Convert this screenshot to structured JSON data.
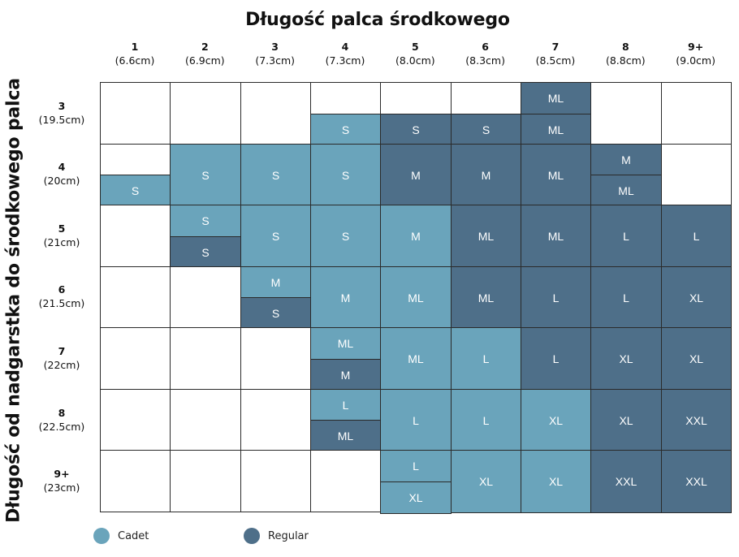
{
  "chart_data": {
    "type": "table",
    "title": "Długość palca środkowego",
    "ylabel": "Długość od nadgarstka do środkowego palca",
    "columns": [
      {
        "num": "1",
        "len": "(6.6cm)"
      },
      {
        "num": "2",
        "len": "(6.9cm)"
      },
      {
        "num": "3",
        "len": "(7.3cm)"
      },
      {
        "num": "4",
        "len": "(7.3cm)"
      },
      {
        "num": "5",
        "len": "(8.0cm)"
      },
      {
        "num": "6",
        "len": "(8.3cm)"
      },
      {
        "num": "7",
        "len": "(8.5cm)"
      },
      {
        "num": "8",
        "len": "(8.8cm)"
      },
      {
        "num": "9+",
        "len": "(9.0cm)"
      }
    ],
    "rows": [
      {
        "num": "3",
        "len": "(19.5cm)"
      },
      {
        "num": "4",
        "len": "(20cm)"
      },
      {
        "num": "5",
        "len": "(21cm)"
      },
      {
        "num": "6",
        "len": "(21.5cm)"
      },
      {
        "num": "7",
        "len": "(22cm)"
      },
      {
        "num": "8",
        "len": "(22.5cm)"
      },
      {
        "num": "9+",
        "len": "(23cm)"
      }
    ],
    "legend": [
      {
        "key": "C",
        "label": "Cadet",
        "color": "#6aa4bb"
      },
      {
        "key": "R",
        "label": "Regular",
        "color": "#4e6f89"
      }
    ],
    "cells": [
      [
        [],
        [],
        [],
        [
          [
            null,
            null
          ],
          [
            "S",
            "C"
          ]
        ],
        [
          [
            null,
            null
          ],
          [
            "S",
            "R"
          ]
        ],
        [
          [
            null,
            null
          ],
          [
            "S",
            "R"
          ]
        ],
        [
          [
            "ML",
            "R"
          ],
          [
            "ML",
            "R"
          ]
        ],
        [],
        []
      ],
      [
        [
          [
            null,
            null
          ],
          [
            "S",
            "C"
          ]
        ],
        [
          [
            "S",
            "C"
          ]
        ],
        [
          [
            "S",
            "C"
          ]
        ],
        [
          [
            "S",
            "C"
          ]
        ],
        [
          [
            "M",
            "R"
          ]
        ],
        [
          [
            "M",
            "R"
          ]
        ],
        [
          [
            "ML",
            "R"
          ]
        ],
        [
          [
            "M",
            "R"
          ],
          [
            "ML",
            "R"
          ]
        ],
        []
      ],
      [
        [],
        [
          [
            "S",
            "C"
          ],
          [
            "S",
            "R"
          ]
        ],
        [
          [
            "S",
            "C"
          ]
        ],
        [
          [
            "S",
            "C"
          ]
        ],
        [
          [
            "M",
            "C"
          ]
        ],
        [
          [
            "ML",
            "R"
          ]
        ],
        [
          [
            "ML",
            "R"
          ]
        ],
        [
          [
            "L",
            "R"
          ]
        ],
        [
          [
            "L",
            "R"
          ]
        ]
      ],
      [
        [],
        [],
        [
          [
            "M",
            "C"
          ],
          [
            "S",
            "R"
          ]
        ],
        [
          [
            "M",
            "C"
          ]
        ],
        [
          [
            "ML",
            "C"
          ]
        ],
        [
          [
            "ML",
            "R"
          ]
        ],
        [
          [
            "L",
            "R"
          ]
        ],
        [
          [
            "L",
            "R"
          ]
        ],
        [
          [
            "XL",
            "R"
          ]
        ]
      ],
      [
        [],
        [],
        [],
        [
          [
            "ML",
            "C"
          ],
          [
            "M",
            "R"
          ]
        ],
        [
          [
            "ML",
            "C"
          ]
        ],
        [
          [
            "L",
            "C"
          ]
        ],
        [
          [
            "L",
            "R"
          ]
        ],
        [
          [
            "XL",
            "R"
          ]
        ],
        [
          [
            "XL",
            "R"
          ]
        ]
      ],
      [
        [],
        [],
        [],
        [
          [
            "L",
            "C"
          ],
          [
            "ML",
            "R"
          ]
        ],
        [
          [
            "L",
            "C"
          ]
        ],
        [
          [
            "L",
            "C"
          ]
        ],
        [
          [
            "XL",
            "C"
          ]
        ],
        [
          [
            "XL",
            "R"
          ]
        ],
        [
          [
            "XXL",
            "R"
          ]
        ]
      ],
      [
        [],
        [],
        [],
        [],
        [
          [
            "L",
            "C"
          ],
          [
            "XL",
            "C"
          ]
        ],
        [
          [
            "XL",
            "C"
          ]
        ],
        [
          [
            "XL",
            "C"
          ]
        ],
        [
          [
            "XXL",
            "R"
          ]
        ],
        [
          [
            "XXL",
            "R"
          ]
        ]
      ]
    ]
  }
}
